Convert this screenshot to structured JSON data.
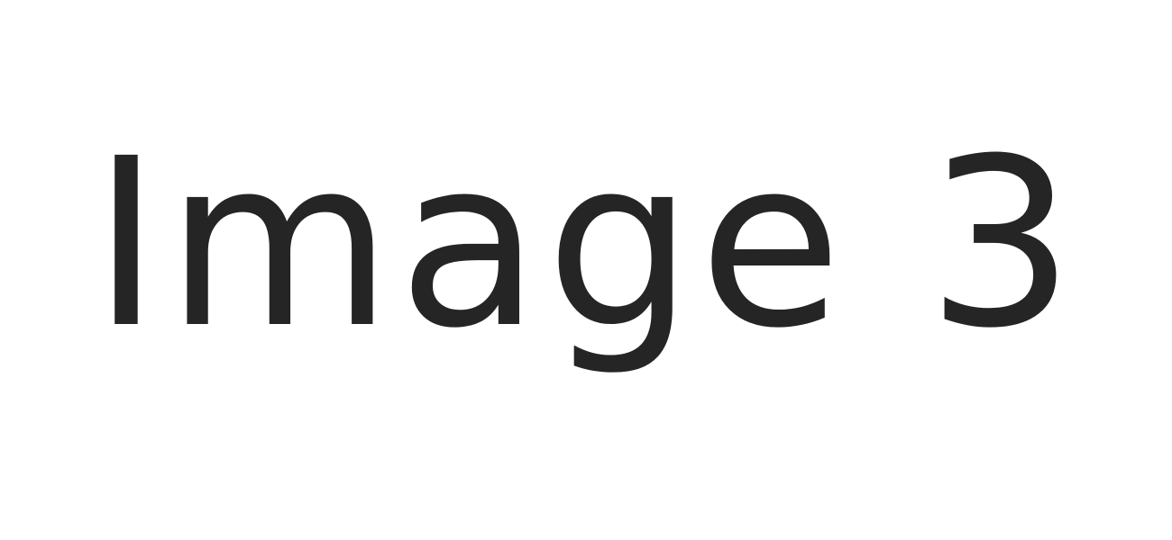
{
  "placeholder": {
    "label": "Image 3",
    "text_color": "#252525",
    "background_color": "#ffffff"
  }
}
